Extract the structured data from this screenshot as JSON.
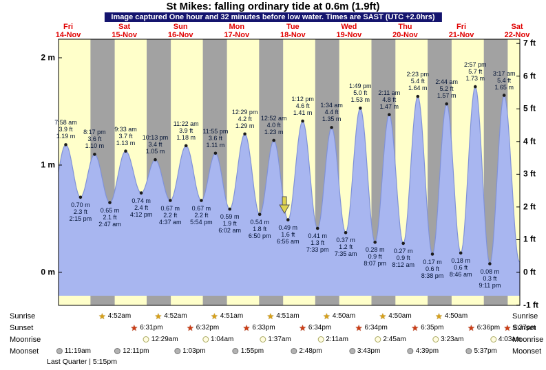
{
  "header": {
    "title": "St Mikes: falling  ordinary tide at 0.6m (1.9ft)",
    "subtitle": "Image captured One hour and 32 minutes before low water. Times are SAST (UTC +2.0hrs)"
  },
  "chart_data": {
    "type": "area",
    "title": "St Mikes: falling  ordinary tide at 0.6m (1.9ft)",
    "subtitle": "Image captured One hour and 32 minutes before low water. Times are SAST (UTC +2.0hrs)",
    "x_axis": {
      "start": "Fri 14-Nov",
      "end": "Sat 22-Nov",
      "t_unit": "hours from Fri 14-Nov 00:00"
    },
    "ylabel_left": "metres",
    "ylabel_right": "feet",
    "ylim_m": [
      -0.3,
      2.2
    ],
    "days": [
      {
        "name": "Fri",
        "date": "14-Nov",
        "t": 9
      },
      {
        "name": "Sat",
        "date": "15-Nov",
        "t": 33
      },
      {
        "name": "Sun",
        "date": "16-Nov",
        "t": 57
      },
      {
        "name": "Mon",
        "date": "17-Nov",
        "t": 81
      },
      {
        "name": "Tue",
        "date": "18-Nov",
        "t": 105
      },
      {
        "name": "Wed",
        "date": "19-Nov",
        "t": 129
      },
      {
        "name": "Thu",
        "date": "20-Nov",
        "t": 153
      },
      {
        "name": "Fri",
        "date": "21-Nov",
        "t": 177
      },
      {
        "name": "Sat",
        "date": "22-Nov",
        "t": 201
      }
    ],
    "y_left_ticks": [
      {
        "label": "2 m",
        "m": 2
      },
      {
        "label": "1 m",
        "m": 1
      },
      {
        "label": "0 m",
        "m": 0
      }
    ],
    "y_right_ticks": [
      {
        "label": "7 ft",
        "ft": 7
      },
      {
        "label": "6 ft",
        "ft": 6
      },
      {
        "label": "5 ft",
        "ft": 5
      },
      {
        "label": "4 ft",
        "ft": 4
      },
      {
        "label": "3 ft",
        "ft": 3
      },
      {
        "label": "2 ft",
        "ft": 2
      },
      {
        "label": "1 ft",
        "ft": 1
      },
      {
        "label": "0 ft",
        "ft": 0
      },
      {
        "label": "-1 ft",
        "ft": -1
      }
    ],
    "tide_events": [
      {
        "type": "high",
        "t": 7.967,
        "height_m": 1.19,
        "lines": [
          "7:58 am",
          "3.9 ft",
          "1.19 m"
        ]
      },
      {
        "type": "low",
        "t": 14.25,
        "height_m": 0.7,
        "lines": [
          "0.70 m",
          "2.3 ft",
          "2:15 pm"
        ]
      },
      {
        "type": "high",
        "t": 20.283,
        "height_m": 1.1,
        "lines": [
          "8:17 pm",
          "3.6 ft",
          "1.10 m"
        ]
      },
      {
        "type": "low",
        "t": 26.783,
        "height_m": 0.65,
        "lines": [
          "0.65 m",
          "2.1 ft",
          "2:47 am"
        ]
      },
      {
        "type": "high",
        "t": 33.55,
        "height_m": 1.13,
        "lines": [
          "9:33 am",
          "3.7 ft",
          "1.13 m"
        ]
      },
      {
        "type": "low",
        "t": 40.2,
        "height_m": 0.74,
        "lines": [
          "0.74 m",
          "2.4 ft",
          "4:12 pm"
        ]
      },
      {
        "type": "high",
        "t": 46.217,
        "height_m": 1.05,
        "lines": [
          "10:13 pm",
          "3.4 ft",
          "1.05 m"
        ]
      },
      {
        "type": "low",
        "t": 52.617,
        "height_m": 0.67,
        "lines": [
          "0.67 m",
          "2.2 ft",
          "4:37 am"
        ]
      },
      {
        "type": "high",
        "t": 59.367,
        "height_m": 1.18,
        "lines": [
          "11:22 am",
          "3.9 ft",
          "1.18 m"
        ]
      },
      {
        "type": "low",
        "t": 65.9,
        "height_m": 0.67,
        "lines": [
          "0.67 m",
          "2.2 ft",
          "5:54 pm"
        ]
      },
      {
        "type": "high",
        "t": 71.917,
        "height_m": 1.11,
        "lines": [
          "11:55 pm",
          "3.6 ft",
          "1.11 m"
        ]
      },
      {
        "type": "low",
        "t": 78.033,
        "height_m": 0.59,
        "lines": [
          "0.59 m",
          "1.9 ft",
          "6:02 am"
        ]
      },
      {
        "type": "high",
        "t": 84.483,
        "height_m": 1.29,
        "lines": [
          "12:29 pm",
          "4.2 ft",
          "1.29 m"
        ]
      },
      {
        "type": "low",
        "t": 90.833,
        "height_m": 0.54,
        "lines": [
          "0.54 m",
          "1.8 ft",
          "6:50 pm"
        ]
      },
      {
        "type": "high",
        "t": 96.867,
        "height_m": 1.23,
        "lines": [
          "12:52 am",
          "4.0 ft",
          "1.23 m"
        ]
      },
      {
        "type": "low",
        "t": 102.933,
        "height_m": 0.49,
        "lines": [
          "0.49 m",
          "1.6 ft",
          "6:56 am"
        ]
      },
      {
        "type": "high",
        "t": 109.2,
        "height_m": 1.41,
        "lines": [
          "1:12 pm",
          "4.6 ft",
          "1.41 m"
        ]
      },
      {
        "type": "low",
        "t": 115.55,
        "height_m": 0.41,
        "lines": [
          "0.41 m",
          "1.3 ft",
          "7:33 pm"
        ]
      },
      {
        "type": "high",
        "t": 121.567,
        "height_m": 1.35,
        "lines": [
          "1:34 am",
          "4.4 ft",
          "1.35 m"
        ]
      },
      {
        "type": "low",
        "t": 127.583,
        "height_m": 0.37,
        "lines": [
          "0.37 m",
          "1.2 ft",
          "7:35 am"
        ]
      },
      {
        "type": "high",
        "t": 133.817,
        "height_m": 1.53,
        "lines": [
          "1:49 pm",
          "5.0 ft",
          "1.53 m"
        ]
      },
      {
        "type": "low",
        "t": 140.117,
        "height_m": 0.28,
        "lines": [
          "0.28 m",
          "0.9 ft",
          "8:07 pm"
        ]
      },
      {
        "type": "high",
        "t": 146.183,
        "height_m": 1.47,
        "lines": [
          "2:11 am",
          "4.8 ft",
          "1.47 m"
        ]
      },
      {
        "type": "low",
        "t": 152.2,
        "height_m": 0.27,
        "lines": [
          "0.27 m",
          "0.9 ft",
          "8:12 am"
        ]
      },
      {
        "type": "high",
        "t": 158.383,
        "height_m": 1.64,
        "lines": [
          "2:23 pm",
          "5.4 ft",
          "1.64 m"
        ]
      },
      {
        "type": "low",
        "t": 164.633,
        "height_m": 0.17,
        "lines": [
          "0.17 m",
          "0.6 ft",
          "8:38 pm"
        ]
      },
      {
        "type": "high",
        "t": 170.733,
        "height_m": 1.57,
        "lines": [
          "2:44 am",
          "5.2 ft",
          "1.57 m"
        ]
      },
      {
        "type": "low",
        "t": 176.767,
        "height_m": 0.18,
        "lines": [
          "0.18 m",
          "0.6 ft",
          "8:46 am"
        ]
      },
      {
        "type": "high",
        "t": 182.95,
        "height_m": 1.73,
        "lines": [
          "2:57 pm",
          "5.7 ft",
          "1.73 m"
        ]
      },
      {
        "type": "low",
        "t": 189.183,
        "height_m": 0.08,
        "lines": [
          "0.08 m",
          "0.3 ft",
          "9:11 pm"
        ]
      },
      {
        "type": "high",
        "t": 195.283,
        "height_m": 1.65,
        "lines": [
          "3:17 am",
          "5.4 ft",
          "1.65 m"
        ]
      }
    ],
    "night_bands": [
      [
        18.517,
        28.867
      ],
      [
        42.533,
        52.867
      ],
      [
        66.55,
        76.85
      ],
      [
        90.567,
        100.85
      ],
      [
        114.567,
        124.833
      ],
      [
        138.583,
        148.833
      ],
      [
        162.6,
        172.833
      ],
      [
        186.617,
        196.833
      ]
    ],
    "capture_marker_t": 101.4,
    "colors": {
      "plot_bg": "#ffffca",
      "night_band": "#a2a2a2",
      "tide_fill": "#a8b6f0",
      "tide_stroke": "#8092d8",
      "day_label": "#e00000",
      "subtitle_bg": "#14146e",
      "subtitle_text": "#ffffff",
      "marker_fill": "#ded44e"
    }
  },
  "astro": {
    "rows": [
      {
        "id": "sunrise",
        "label": "Sunrise",
        "icon": "sunrise-star-icon",
        "times": [
          "4:52am",
          "4:52am",
          "4:51am",
          "4:51am",
          "4:50am",
          "4:50am",
          "4:50am"
        ]
      },
      {
        "id": "sunset",
        "label": "Sunset",
        "icon": "sunset-star-icon",
        "times": [
          "6:31pm",
          "6:32pm",
          "6:33pm",
          "6:34pm",
          "6:34pm",
          "6:35pm",
          "6:36pm",
          "6:37pm"
        ]
      },
      {
        "id": "moonrise",
        "label": "Moonrise",
        "icon": "moonrise-moon-icon",
        "times": [
          "12:29am",
          "1:04am",
          "1:37am",
          "2:11am",
          "2:45am",
          "3:23am",
          "4:03am"
        ]
      },
      {
        "id": "moonset",
        "label": "Moonset",
        "icon": "moonset-moon-icon",
        "times": [
          "11:19am",
          "12:11pm",
          "1:03pm",
          "1:55pm",
          "2:48pm",
          "3:43pm",
          "4:39pm",
          "5:37pm"
        ]
      }
    ],
    "moon_phase": "Last Quarter | 5:15pm"
  }
}
